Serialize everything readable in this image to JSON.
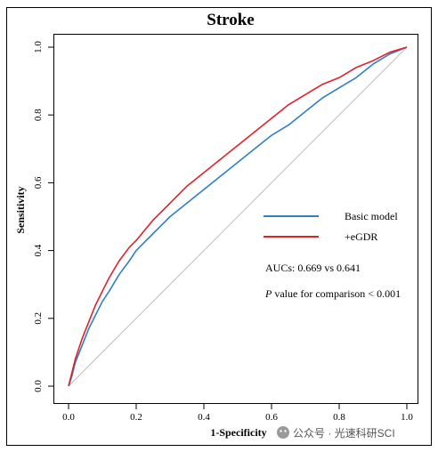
{
  "chart_data": {
    "type": "line",
    "title": "Stroke",
    "xlabel": "1-Specificity",
    "ylabel": "Sensitivity",
    "xlim": [
      0,
      1
    ],
    "ylim": [
      0,
      1
    ],
    "x_ticks": [
      "0.0",
      "0.2",
      "0.4",
      "0.6",
      "0.8",
      "1.0"
    ],
    "y_ticks": [
      "0.0",
      "0.2",
      "0.4",
      "0.6",
      "0.8",
      "1.0"
    ],
    "grid": false,
    "legend_position": "right",
    "reference_line": {
      "x": [
        0,
        1
      ],
      "y": [
        0,
        1
      ],
      "color": "#bdbdbd"
    },
    "series": [
      {
        "name": "Basic model",
        "color": "#2f7fc1",
        "x": [
          0,
          0.01,
          0.02,
          0.04,
          0.06,
          0.08,
          0.1,
          0.12,
          0.15,
          0.18,
          0.2,
          0.25,
          0.3,
          0.35,
          0.4,
          0.45,
          0.5,
          0.55,
          0.6,
          0.65,
          0.7,
          0.75,
          0.8,
          0.85,
          0.9,
          0.95,
          1.0
        ],
        "y": [
          0,
          0.03,
          0.07,
          0.12,
          0.17,
          0.21,
          0.25,
          0.28,
          0.33,
          0.37,
          0.4,
          0.45,
          0.5,
          0.54,
          0.58,
          0.62,
          0.66,
          0.7,
          0.74,
          0.77,
          0.81,
          0.85,
          0.88,
          0.91,
          0.95,
          0.98,
          1.0
        ]
      },
      {
        "name": "+eGDR",
        "color": "#e0212b",
        "x": [
          0,
          0.01,
          0.02,
          0.04,
          0.06,
          0.08,
          0.1,
          0.12,
          0.15,
          0.18,
          0.2,
          0.25,
          0.3,
          0.35,
          0.4,
          0.45,
          0.5,
          0.55,
          0.6,
          0.65,
          0.7,
          0.75,
          0.8,
          0.85,
          0.9,
          0.95,
          1.0
        ],
        "y": [
          0,
          0.04,
          0.08,
          0.14,
          0.19,
          0.24,
          0.28,
          0.32,
          0.37,
          0.41,
          0.43,
          0.49,
          0.54,
          0.59,
          0.63,
          0.67,
          0.71,
          0.75,
          0.79,
          0.83,
          0.86,
          0.89,
          0.91,
          0.94,
          0.96,
          0.985,
          1.0
        ]
      }
    ],
    "annotations": {
      "auc": "AUCs: 0.669 vs 0.641",
      "p_italic": "P",
      "p_rest": " value for comparison < 0.001"
    }
  },
  "watermark": "公众号 · 光速科研SCI"
}
